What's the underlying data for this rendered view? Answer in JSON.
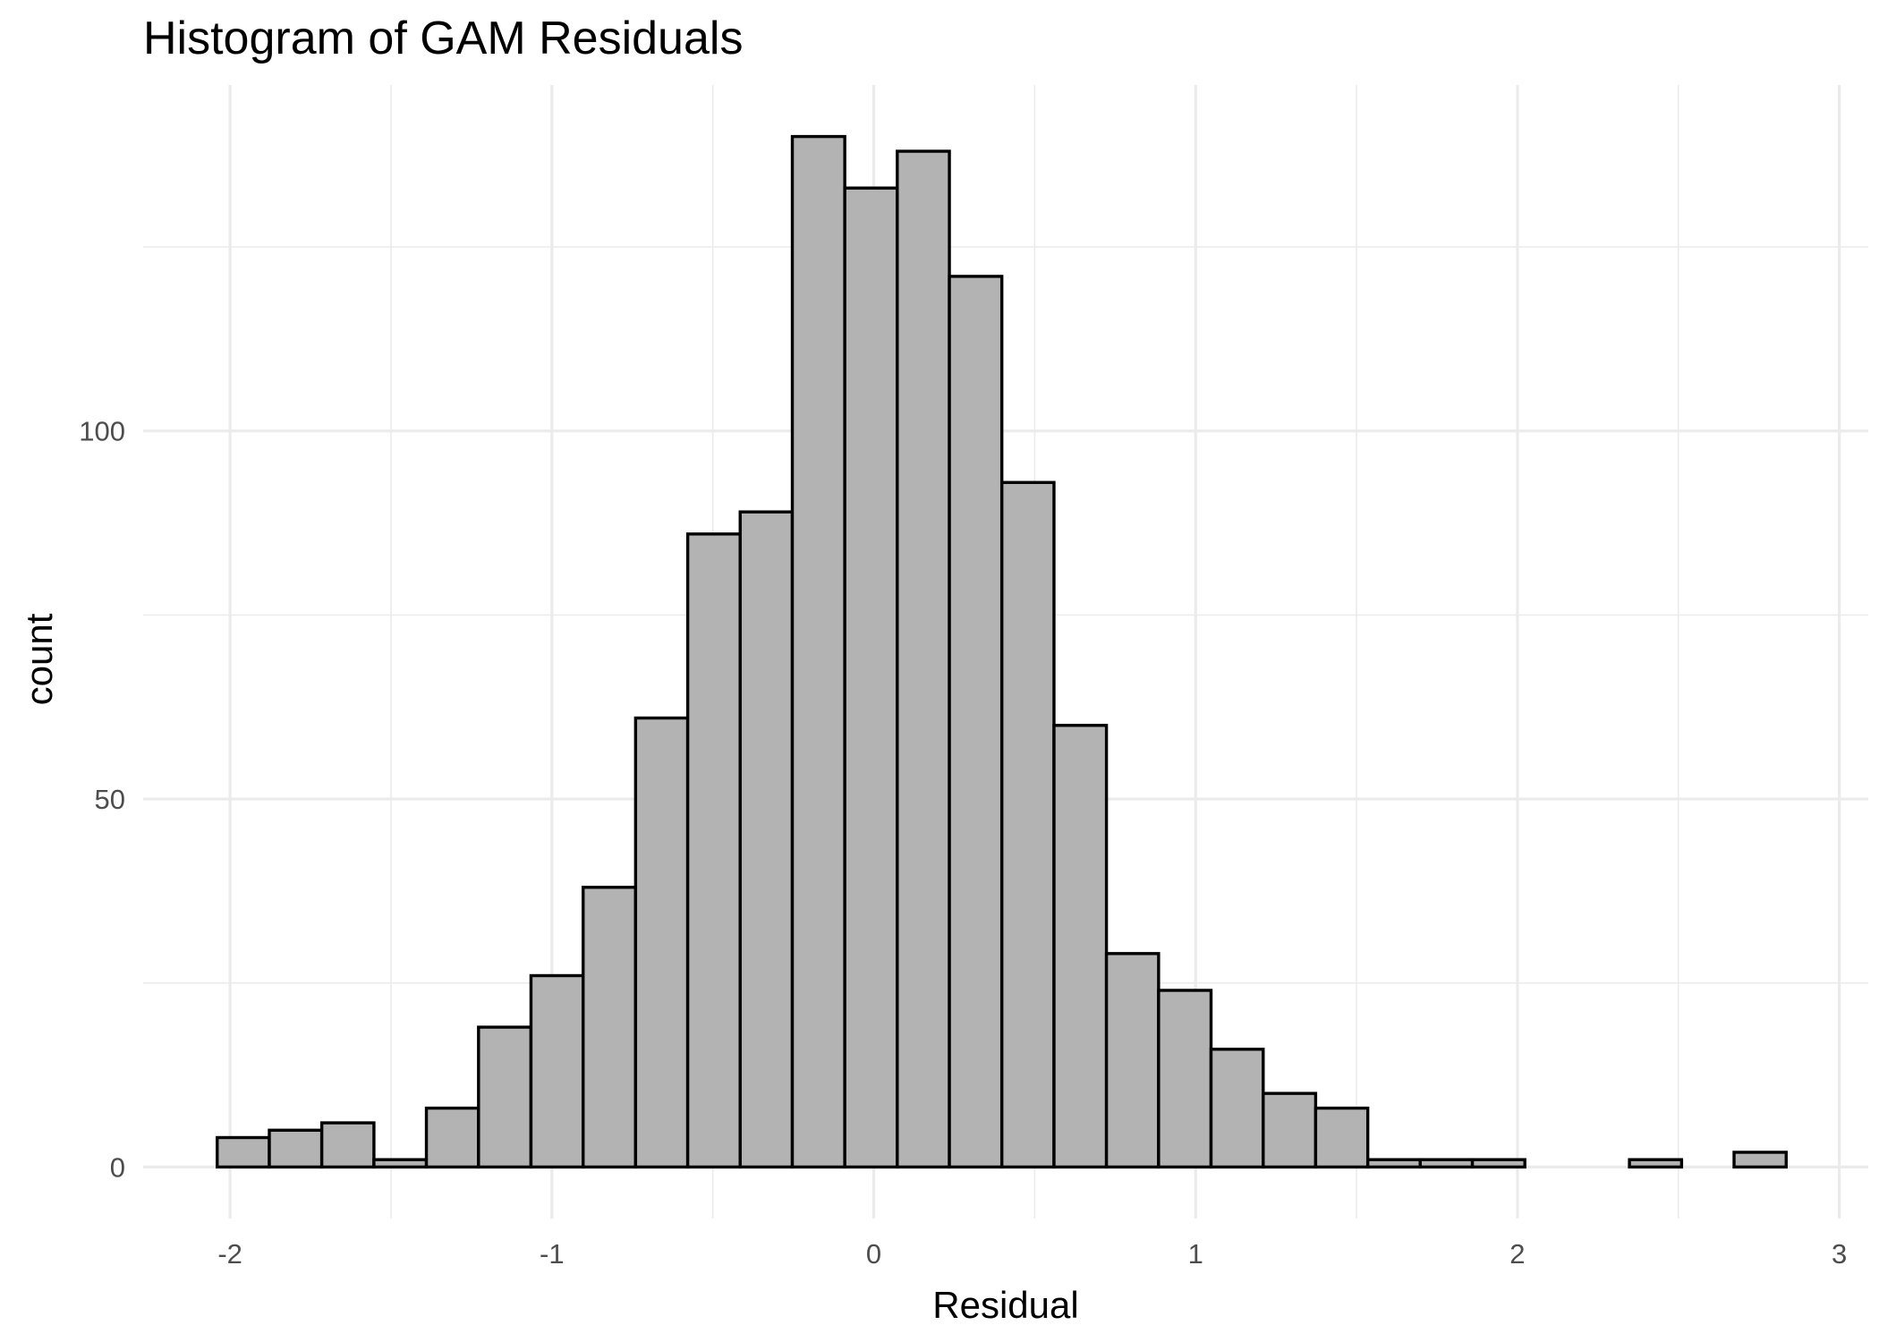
{
  "chart_data": {
    "type": "bar",
    "title": "Histogram of GAM Residuals",
    "xlabel": "Residual",
    "ylabel": "count",
    "xlim": [
      -2.27,
      3.09
    ],
    "ylim": [
      -7.0,
      147.0
    ],
    "x_ticks": [
      -2,
      -1,
      0,
      1,
      2,
      3
    ],
    "x_tick_labels": [
      "-2",
      "-1",
      "0",
      "1",
      "2",
      "3"
    ],
    "y_ticks": [
      0,
      50,
      100
    ],
    "y_tick_labels": [
      "0",
      "50",
      "100"
    ],
    "grid": true,
    "legend": "none",
    "bin_width": 0.1625,
    "bins": [
      {
        "x0": -2.04,
        "x1": -1.878,
        "count": 4
      },
      {
        "x0": -1.878,
        "x1": -1.715,
        "count": 5
      },
      {
        "x0": -1.715,
        "x1": -1.553,
        "count": 6
      },
      {
        "x0": -1.553,
        "x1": -1.39,
        "count": 1
      },
      {
        "x0": -1.39,
        "x1": -1.228,
        "count": 8
      },
      {
        "x0": -1.228,
        "x1": -1.065,
        "count": 19
      },
      {
        "x0": -1.065,
        "x1": -0.903,
        "count": 26
      },
      {
        "x0": -0.903,
        "x1": -0.74,
        "count": 38
      },
      {
        "x0": -0.74,
        "x1": -0.578,
        "count": 61
      },
      {
        "x0": -0.578,
        "x1": -0.415,
        "count": 86
      },
      {
        "x0": -0.415,
        "x1": -0.253,
        "count": 89
      },
      {
        "x0": -0.253,
        "x1": -0.09,
        "count": 140
      },
      {
        "x0": -0.09,
        "x1": 0.073,
        "count": 133
      },
      {
        "x0": 0.073,
        "x1": 0.235,
        "count": 138
      },
      {
        "x0": 0.235,
        "x1": 0.398,
        "count": 121
      },
      {
        "x0": 0.398,
        "x1": 0.56,
        "count": 93
      },
      {
        "x0": 0.56,
        "x1": 0.723,
        "count": 60
      },
      {
        "x0": 0.723,
        "x1": 0.885,
        "count": 29
      },
      {
        "x0": 0.885,
        "x1": 1.048,
        "count": 24
      },
      {
        "x0": 1.048,
        "x1": 1.21,
        "count": 16
      },
      {
        "x0": 1.21,
        "x1": 1.373,
        "count": 10
      },
      {
        "x0": 1.373,
        "x1": 1.535,
        "count": 8
      },
      {
        "x0": 1.535,
        "x1": 1.698,
        "count": 1
      },
      {
        "x0": 1.698,
        "x1": 1.86,
        "count": 1
      },
      {
        "x0": 1.86,
        "x1": 2.023,
        "count": 1
      },
      {
        "x0": 2.023,
        "x1": 2.185,
        "count": 0
      },
      {
        "x0": 2.185,
        "x1": 2.348,
        "count": 0
      },
      {
        "x0": 2.348,
        "x1": 2.51,
        "count": 1
      },
      {
        "x0": 2.51,
        "x1": 2.673,
        "count": 0
      },
      {
        "x0": 2.673,
        "x1": 2.835,
        "count": 2
      }
    ]
  }
}
